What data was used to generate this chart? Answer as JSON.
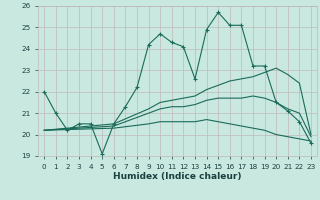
{
  "xlabel": "Humidex (Indice chaleur)",
  "xlim": [
    -0.5,
    23.5
  ],
  "ylim": [
    19,
    26
  ],
  "yticks": [
    19,
    20,
    21,
    22,
    23,
    24,
    25,
    26
  ],
  "xticks": [
    0,
    1,
    2,
    3,
    4,
    5,
    6,
    7,
    8,
    9,
    10,
    11,
    12,
    13,
    14,
    15,
    16,
    17,
    18,
    19,
    20,
    21,
    22,
    23
  ],
  "bg_color": "#c8e8e0",
  "grid_color": "#c0b8b8",
  "line_color": "#1a6b5a",
  "line1_x": [
    0,
    1,
    2,
    3,
    4,
    5,
    6,
    7,
    8,
    9,
    10,
    11,
    12,
    13,
    14,
    15,
    16,
    17,
    18,
    19,
    20,
    21,
    22,
    23
  ],
  "line1_y": [
    22.0,
    21.0,
    20.2,
    20.5,
    20.5,
    19.1,
    20.5,
    21.3,
    22.2,
    24.2,
    24.7,
    24.3,
    24.1,
    22.6,
    24.9,
    25.7,
    25.1,
    25.1,
    23.2,
    23.2,
    21.5,
    21.1,
    20.6,
    19.6
  ],
  "line2_x": [
    0,
    6,
    9,
    10,
    11,
    12,
    13,
    14,
    15,
    16,
    17,
    18,
    19,
    20,
    21,
    22,
    23
  ],
  "line2_y": [
    20.2,
    20.5,
    21.2,
    21.5,
    21.6,
    21.7,
    21.8,
    22.1,
    22.3,
    22.5,
    22.6,
    22.7,
    22.9,
    23.1,
    22.8,
    22.4,
    20.0
  ],
  "line3_x": [
    0,
    6,
    9,
    10,
    11,
    12,
    13,
    14,
    15,
    16,
    17,
    18,
    19,
    20,
    21,
    22,
    23
  ],
  "line3_y": [
    20.2,
    20.3,
    20.5,
    20.6,
    20.6,
    20.6,
    20.6,
    20.7,
    20.6,
    20.5,
    20.4,
    20.3,
    20.2,
    20.0,
    19.9,
    19.8,
    19.7
  ],
  "line4_x": [
    0,
    6,
    9,
    10,
    11,
    12,
    13,
    14,
    15,
    16,
    17,
    18,
    19,
    20,
    21,
    22,
    23
  ],
  "line4_y": [
    20.2,
    20.4,
    21.0,
    21.2,
    21.3,
    21.3,
    21.4,
    21.6,
    21.7,
    21.7,
    21.7,
    21.8,
    21.7,
    21.5,
    21.2,
    21.0,
    19.9
  ]
}
